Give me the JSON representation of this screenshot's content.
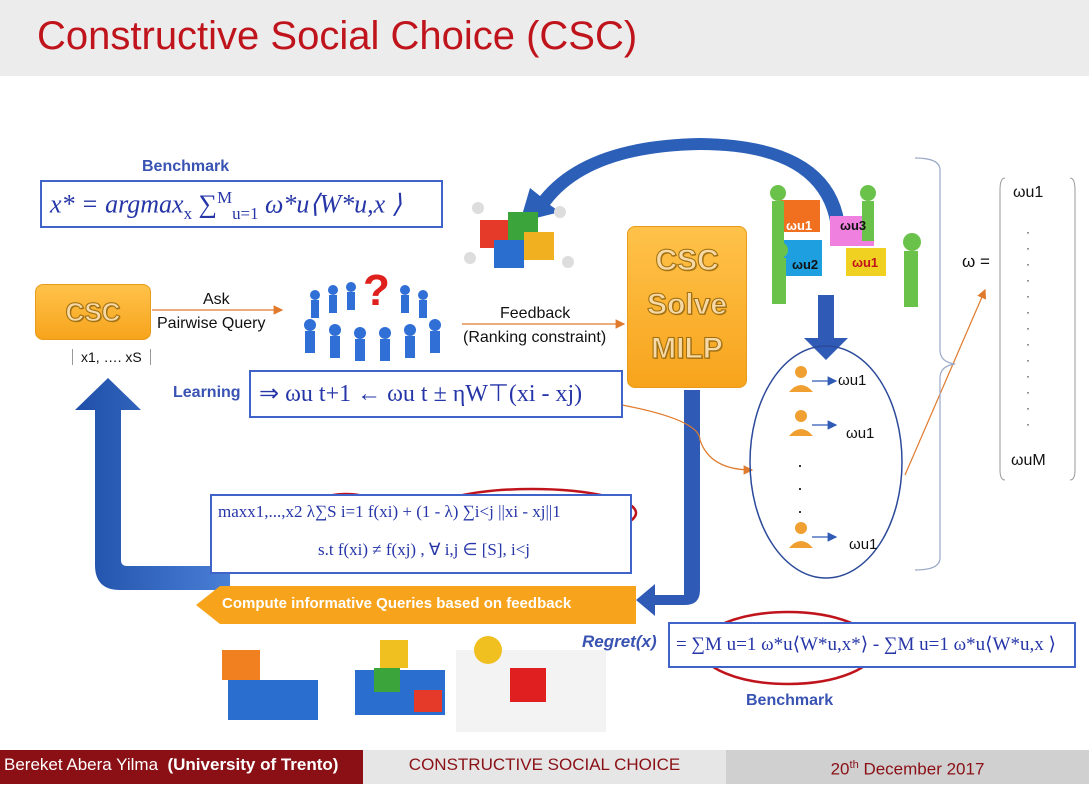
{
  "title": "Constructive Social Choice (CSC)",
  "benchmark_top": {
    "label": "Benchmark",
    "formula_lhs": "x* = argmax",
    "formula_sub": "x",
    "formula_rhs": "∑",
    "sum_bounds_top": "M",
    "sum_bounds_bottom": "u=1",
    "formula_tail": "ω*u⟨W*u,x ⟩"
  },
  "csc_left": {
    "label": "CSC"
  },
  "query": {
    "ask": "Ask",
    "pairwise": "Pairwise Query"
  },
  "candidates": {
    "text": "x1, …. xS"
  },
  "feedback": {
    "line1": "Feedback",
    "line2": "(Ranking constraint)"
  },
  "csc_solve": {
    "line1": "CSC",
    "line2": "Solve",
    "line3": "MILP"
  },
  "learning": {
    "label": "Learning",
    "formula": "⇒ ωu t+1 ← ωu t ± ηW⊤(xi - xj)"
  },
  "optimization": {
    "line1": "maxx1,...,x2 λ∑S i=1 f(xi) + (1 - λ) ∑i<j ||xi - xj||1",
    "line2": "s.t f(xi) ≠ f(xj) , ∀ i,j ∈ [S], i<j"
  },
  "compute_banner": {
    "label": "Compute informative Queries based on feedback"
  },
  "regret": {
    "label": "Regret(x)",
    "formula": "= ∑M u=1 ω*u⟨W*u,x*⟩ - ∑M u=1 ω*u⟨W*u,x ⟩",
    "benchmark_label": "Benchmark"
  },
  "users": {
    "weights": [
      "ωu1",
      "ωu1",
      "ωu1"
    ],
    "dots": "·"
  },
  "puzzle_labels": {
    "a": "ωu1",
    "b": "ωu3",
    "c": "ωu2",
    "d": "ωu1"
  },
  "omega_vector": {
    "symbol": "ω =",
    "top": "ωu1",
    "bottom": "ωuM"
  },
  "footer": {
    "author": "Bereket Abera Yilma",
    "affiliation": "(University of Trento)",
    "course": "CONSTRUCTIVE SOCIAL CHOICE",
    "date_day": "20",
    "date_sup": "th",
    "date_rest": "December 2017"
  },
  "colors": {
    "title_red": "#c0141c",
    "accent_blue": "#2f5bb7",
    "orange": "#f7a41c",
    "ellipse_red": "#c0141c"
  }
}
